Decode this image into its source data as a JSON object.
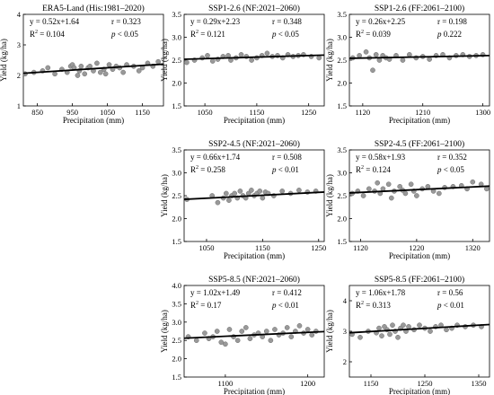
{
  "figure": {
    "ylabel": "Yield (kg/ha)",
    "xlabel": "Precipitation (mm)"
  },
  "chart_data": [
    {
      "type": "scatter",
      "title": "ERA5-Land (His:1981–2020)",
      "equation": "y = 0.52x+1.64",
      "r": "r = 0.323",
      "r2_value": "0.104",
      "p_text": "< 0.05",
      "xlim": [
        810,
        1210
      ],
      "xticks": [
        850,
        950,
        1050,
        1150
      ],
      "ylim": [
        1,
        4
      ],
      "yticks": [
        1,
        2,
        3,
        4
      ],
      "fit": {
        "x": [
          810,
          1210
        ],
        "y": [
          2.07,
          2.37
        ]
      },
      "points": {
        "x": [
          815,
          840,
          865,
          880,
          900,
          920,
          935,
          945,
          950,
          955,
          965,
          970,
          975,
          985,
          995,
          1000,
          1010,
          1020,
          1030,
          1040,
          1045,
          1055,
          1065,
          1075,
          1085,
          1095,
          1105,
          1125,
          1140,
          1150,
          1165,
          1180,
          1195
        ],
        "y": [
          2.05,
          2.1,
          2.15,
          2.25,
          2.05,
          2.2,
          2.1,
          2.3,
          2.35,
          2.25,
          2.0,
          2.15,
          2.3,
          2.05,
          2.25,
          2.3,
          2.15,
          2.4,
          2.1,
          2.2,
          2.05,
          2.35,
          2.2,
          2.3,
          2.25,
          2.1,
          2.35,
          2.3,
          2.15,
          2.25,
          2.4,
          2.3,
          2.45
        ]
      }
    },
    {
      "type": "scatter",
      "title": "SSP1-2.6 (NF:2021–2060)",
      "equation": "y = 0.29x+2.23",
      "r": "r = 0.348",
      "r2_value": "0.121",
      "p_text": "< 0.05",
      "xlim": [
        1010,
        1280
      ],
      "xticks": [
        1050,
        1150,
        1250
      ],
      "ylim": [
        1.5,
        3.5
      ],
      "yticks": [
        1.5,
        2.0,
        2.5,
        3.0,
        3.5
      ],
      "fit": {
        "x": [
          1010,
          1280
        ],
        "y": [
          2.52,
          2.61
        ]
      },
      "points": {
        "x": [
          1015,
          1030,
          1045,
          1055,
          1065,
          1075,
          1085,
          1095,
          1100,
          1110,
          1120,
          1130,
          1140,
          1150,
          1160,
          1170,
          1180,
          1190,
          1200,
          1210,
          1220,
          1230,
          1240,
          1255,
          1270
        ],
        "y": [
          2.45,
          2.5,
          2.55,
          2.6,
          2.48,
          2.52,
          2.58,
          2.6,
          2.5,
          2.55,
          2.62,
          2.58,
          2.5,
          2.55,
          2.6,
          2.65,
          2.58,
          2.6,
          2.55,
          2.62,
          2.58,
          2.6,
          2.62,
          2.58,
          2.55
        ]
      }
    },
    {
      "type": "scatter",
      "title": "SSP1-2.6 (FF:2061–2100)",
      "equation": "y = 0.26x+2.25",
      "r": "r = 0.198",
      "r2_value": "0.039",
      "p_text": "0.222",
      "xlim": [
        1100,
        1310
      ],
      "xticks": [
        1120,
        1210,
        1300
      ],
      "ylim": [
        1.5,
        3.5
      ],
      "yticks": [
        1.5,
        2.0,
        2.5,
        3.0,
        3.5
      ],
      "fit": {
        "x": [
          1100,
          1310
        ],
        "y": [
          2.54,
          2.6
        ]
      },
      "points": {
        "x": [
          1105,
          1115,
          1125,
          1130,
          1135,
          1140,
          1145,
          1150,
          1155,
          1160,
          1170,
          1180,
          1190,
          1200,
          1210,
          1220,
          1230,
          1240,
          1250,
          1260,
          1270,
          1280,
          1290,
          1300
        ],
        "y": [
          2.55,
          2.6,
          2.68,
          2.55,
          2.28,
          2.62,
          2.5,
          2.6,
          2.55,
          2.52,
          2.6,
          2.5,
          2.62,
          2.55,
          2.58,
          2.52,
          2.6,
          2.62,
          2.55,
          2.6,
          2.62,
          2.58,
          2.6,
          2.62
        ]
      }
    },
    {
      "type": "scatter",
      "title": "SSP2-4.5 (NF:2021–2060)",
      "equation": "y = 0.66x+1.74",
      "r": "r = 0.508",
      "r2_value": "0.258",
      "p_text": "< 0.01",
      "xlim": [
        1010,
        1260
      ],
      "xticks": [
        1050,
        1150,
        1250
      ],
      "ylim": [
        1.5,
        3.5
      ],
      "yticks": [
        1.5,
        2.0,
        2.5,
        3.0,
        3.5
      ],
      "fit": {
        "x": [
          1010,
          1260
        ],
        "y": [
          2.42,
          2.58
        ]
      },
      "points": {
        "x": [
          1015,
          1060,
          1070,
          1080,
          1085,
          1090,
          1095,
          1100,
          1105,
          1110,
          1115,
          1120,
          1125,
          1130,
          1135,
          1140,
          1145,
          1150,
          1155,
          1160,
          1170,
          1185,
          1200,
          1215,
          1230,
          1245
        ],
        "y": [
          2.42,
          2.5,
          2.35,
          2.45,
          2.55,
          2.4,
          2.5,
          2.55,
          2.45,
          2.6,
          2.5,
          2.45,
          2.55,
          2.62,
          2.5,
          2.55,
          2.6,
          2.45,
          2.58,
          2.55,
          2.5,
          2.6,
          2.55,
          2.62,
          2.58,
          2.6
        ]
      }
    },
    {
      "type": "scatter",
      "title": "SSP2-4.5 (FF:2061–2100)",
      "equation": "y = 0.58x+1.93",
      "r": "r = 0.352",
      "r2_value": "0.124",
      "p_text": "< 0.05",
      "xlim": [
        1100,
        1350
      ],
      "xticks": [
        1120,
        1220,
        1320
      ],
      "ylim": [
        1.5,
        3.5
      ],
      "yticks": [
        1.5,
        2.0,
        2.5,
        3.0,
        3.5
      ],
      "fit": {
        "x": [
          1100,
          1350
        ],
        "y": [
          2.56,
          2.71
        ]
      },
      "points": {
        "x": [
          1105,
          1115,
          1125,
          1135,
          1145,
          1150,
          1155,
          1160,
          1170,
          1175,
          1180,
          1190,
          1195,
          1200,
          1210,
          1215,
          1220,
          1230,
          1240,
          1250,
          1260,
          1270,
          1285,
          1300,
          1310,
          1320,
          1335,
          1345
        ],
        "y": [
          2.55,
          2.6,
          2.5,
          2.65,
          2.6,
          2.78,
          2.55,
          2.65,
          2.75,
          2.45,
          2.6,
          2.7,
          2.62,
          2.55,
          2.75,
          2.6,
          2.5,
          2.65,
          2.7,
          2.6,
          2.55,
          2.68,
          2.7,
          2.72,
          2.65,
          2.8,
          2.75,
          2.65
        ]
      }
    },
    {
      "type": "scatter",
      "title": "SSP5-8.5 (NF:2021–2060)",
      "equation": "y = 1.02x+1.49",
      "r": "r = 0.412",
      "r2_value": "0.17",
      "p_text": "< 0.01",
      "xlim": [
        1050,
        1220
      ],
      "xticks": [
        1100,
        1200
      ],
      "ylim": [
        1.5,
        4.0
      ],
      "yticks": [
        1.5,
        2.0,
        2.5,
        3.0,
        3.5,
        4.0
      ],
      "fit": {
        "x": [
          1050,
          1220
        ],
        "y": [
          2.56,
          2.74
        ]
      },
      "points": {
        "x": [
          1055,
          1065,
          1075,
          1080,
          1085,
          1090,
          1095,
          1100,
          1105,
          1110,
          1115,
          1120,
          1125,
          1130,
          1135,
          1140,
          1145,
          1150,
          1155,
          1160,
          1165,
          1170,
          1175,
          1180,
          1185,
          1190,
          1195,
          1200,
          1205,
          1210
        ],
        "y": [
          2.6,
          2.5,
          2.7,
          2.55,
          2.6,
          2.75,
          2.45,
          2.4,
          2.8,
          2.6,
          2.5,
          2.75,
          2.85,
          2.55,
          2.65,
          2.7,
          2.6,
          2.75,
          2.5,
          2.8,
          2.65,
          2.7,
          2.85,
          2.6,
          2.75,
          2.9,
          2.7,
          2.8,
          2.65,
          2.75
        ]
      }
    },
    {
      "type": "scatter",
      "title": "SSP5-8.5 (FF:2061–2100)",
      "equation": "y = 1.06x+1.78",
      "r": "r = 0.56",
      "r2_value": "0.313",
      "p_text": "< 0.01",
      "xlim": [
        1110,
        1370
      ],
      "xticks": [
        1150,
        1250,
        1350
      ],
      "ylim": [
        1.5,
        4.5
      ],
      "yticks": [
        2,
        3,
        4
      ],
      "fit": {
        "x": [
          1110,
          1370
        ],
        "y": [
          2.95,
          3.22
        ]
      },
      "points": {
        "x": [
          1115,
          1130,
          1145,
          1160,
          1165,
          1170,
          1175,
          1180,
          1185,
          1190,
          1195,
          1200,
          1205,
          1210,
          1215,
          1220,
          1230,
          1240,
          1250,
          1260,
          1270,
          1280,
          1290,
          1300,
          1310,
          1325,
          1340,
          1355
        ],
        "y": [
          2.9,
          2.8,
          3.0,
          2.95,
          3.1,
          2.85,
          3.15,
          3.05,
          2.9,
          3.2,
          3.0,
          2.8,
          3.1,
          3.2,
          3.0,
          3.15,
          3.05,
          3.2,
          3.1,
          3.0,
          3.15,
          3.2,
          3.05,
          3.1,
          3.2,
          3.15,
          3.2,
          3.15
        ]
      }
    }
  ]
}
